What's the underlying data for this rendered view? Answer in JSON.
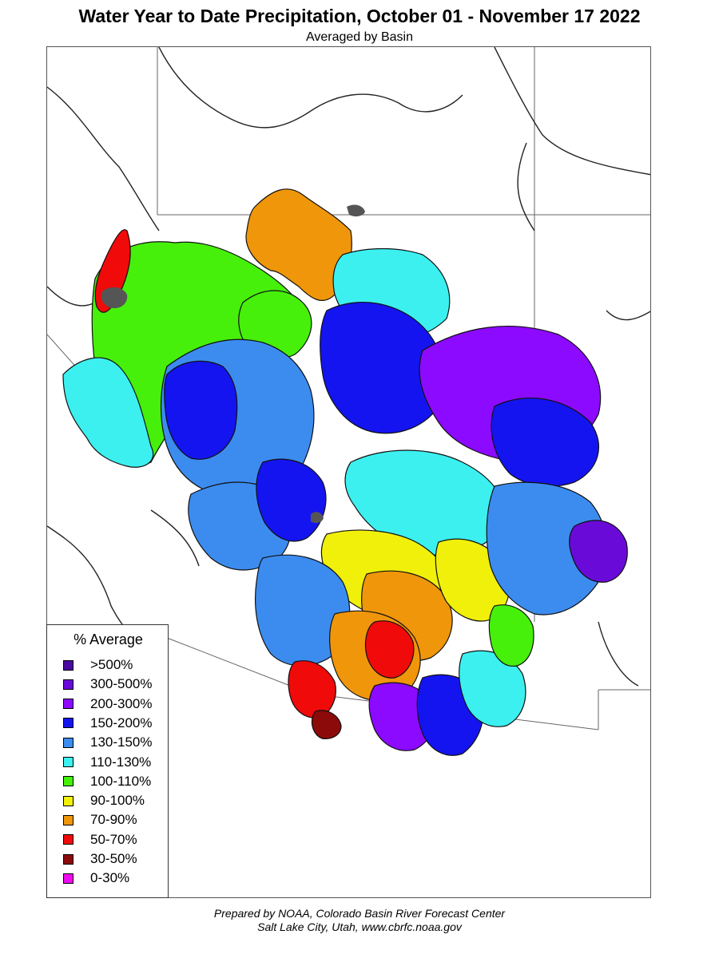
{
  "title": "Water Year to Date Precipitation, October 01  - November 17 2022",
  "subtitle": "Averaged by Basin",
  "legend": {
    "title": "% Average",
    "items": [
      {
        "label": ">500%",
        "color": "#4b0a9e"
      },
      {
        "label": "300-500%",
        "color": "#6a0ad8"
      },
      {
        "label": "200-300%",
        "color": "#8c0aff"
      },
      {
        "label": "150-200%",
        "color": "#1414f0"
      },
      {
        "label": "130-150%",
        "color": "#3c8cf0"
      },
      {
        "label": "110-130%",
        "color": "#3cf0f0"
      },
      {
        "label": "100-110%",
        "color": "#46f00a"
      },
      {
        "label": "90-100%",
        "color": "#f0f00a"
      },
      {
        "label": "70-90%",
        "color": "#f0960a"
      },
      {
        "label": "50-70%",
        "color": "#f00a0a"
      },
      {
        "label": "30-50%",
        "color": "#8c0a0a"
      },
      {
        "label": "0-30%",
        "color": "#f00af0"
      }
    ]
  },
  "footer": {
    "line1": "Prepared by NOAA, Colorado Basin River Forecast Center",
    "line2": "Salt Lake City, Utah, www.cbrfc.noaa.gov"
  }
}
